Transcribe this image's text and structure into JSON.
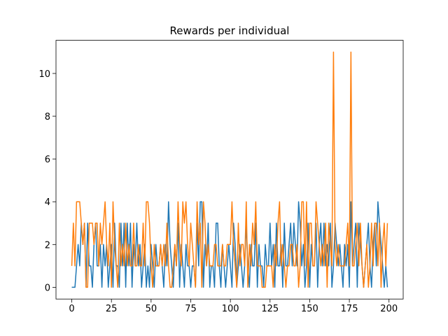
{
  "chart_data": {
    "type": "line",
    "title": "Rewards per individual",
    "x": [
      0,
      1,
      2,
      3,
      4,
      5,
      6,
      7,
      8,
      9,
      10,
      11,
      12,
      13,
      14,
      15,
      16,
      17,
      18,
      19,
      20,
      21,
      22,
      23,
      24,
      25,
      26,
      27,
      28,
      29,
      30,
      31,
      32,
      33,
      34,
      35,
      36,
      37,
      38,
      39,
      40,
      41,
      42,
      43,
      44,
      45,
      46,
      47,
      48,
      49,
      50,
      51,
      52,
      53,
      54,
      55,
      56,
      57,
      58,
      59,
      60,
      61,
      62,
      63,
      64,
      65,
      66,
      67,
      68,
      69,
      70,
      71,
      72,
      73,
      74,
      75,
      76,
      77,
      78,
      79,
      80,
      81,
      82,
      83,
      84,
      85,
      86,
      87,
      88,
      89,
      90,
      91,
      92,
      93,
      94,
      95,
      96,
      97,
      98,
      99,
      100,
      101,
      102,
      103,
      104,
      105,
      106,
      107,
      108,
      109,
      110,
      111,
      112,
      113,
      114,
      115,
      116,
      117,
      118,
      119,
      120,
      121,
      122,
      123,
      124,
      125,
      126,
      127,
      128,
      129,
      130,
      131,
      132,
      133,
      134,
      135,
      136,
      137,
      138,
      139,
      140,
      141,
      142,
      143,
      144,
      145,
      146,
      147,
      148,
      149,
      150,
      151,
      152,
      153,
      154,
      155,
      156,
      157,
      158,
      159,
      160,
      161,
      162,
      163,
      164,
      165,
      166,
      167,
      168,
      169,
      170,
      171,
      172,
      173,
      174,
      175,
      176,
      177,
      178,
      179,
      180,
      181,
      182,
      183,
      184,
      185,
      186,
      187,
      188,
      189,
      190,
      191,
      192,
      193,
      194,
      195,
      196,
      197,
      198,
      199
    ],
    "series": [
      {
        "color": "#1f77b4",
        "values": [
          0,
          0,
          0,
          1,
          2,
          1,
          3,
          2,
          3,
          0,
          3,
          1,
          1,
          0,
          2,
          3,
          1,
          1,
          2,
          0,
          2,
          1,
          2,
          0,
          1,
          2,
          0,
          3,
          1,
          1,
          0,
          3,
          1,
          3,
          0,
          3,
          1,
          3,
          0,
          2,
          1,
          3,
          1,
          2,
          0,
          1,
          2,
          0,
          1,
          0,
          2,
          1,
          0,
          2,
          1,
          1,
          2,
          1,
          0,
          2,
          1,
          4,
          2,
          1,
          0,
          2,
          1,
          3,
          0,
          2,
          1,
          0,
          2,
          1,
          1,
          0,
          1,
          1,
          0,
          3,
          1,
          4,
          4,
          0,
          2,
          1,
          3,
          0,
          1,
          1,
          0,
          3,
          3,
          1,
          0,
          2,
          1,
          0,
          1,
          2,
          1,
          0,
          3,
          2,
          0,
          1,
          2,
          1,
          0,
          1,
          3,
          1,
          0,
          2,
          1,
          1,
          3,
          0,
          2,
          1,
          1,
          0,
          2,
          1,
          1,
          3,
          1,
          2,
          0,
          3,
          1,
          1,
          2,
          0,
          3,
          1,
          1,
          2,
          3,
          1,
          3,
          2,
          1,
          4,
          3,
          1,
          2,
          0,
          1,
          3,
          0,
          2,
          1,
          1,
          3,
          0,
          2,
          3,
          1,
          3,
          1,
          2,
          1,
          3,
          0,
          1,
          3,
          2,
          1,
          2,
          1,
          0,
          2,
          1,
          2,
          0,
          4,
          1,
          2,
          3,
          0,
          3,
          2,
          1,
          0,
          1,
          2,
          3,
          1,
          0,
          2,
          3,
          1,
          4,
          3,
          2,
          1,
          0,
          1,
          0
        ]
      },
      {
        "color": "#ff7f0e",
        "values": [
          1,
          3,
          1,
          4,
          4,
          4,
          3,
          2,
          3,
          0,
          0,
          3,
          3,
          3,
          2,
          3,
          3,
          1,
          3,
          2,
          3,
          4,
          2,
          1,
          3,
          0,
          4,
          2,
          1,
          0,
          3,
          1,
          2,
          1,
          3,
          1,
          2,
          1,
          1,
          3,
          1,
          1,
          2,
          1,
          1,
          3,
          1,
          4,
          4,
          3,
          1,
          0,
          2,
          1,
          1,
          1,
          2,
          1,
          2,
          1,
          3,
          1,
          0,
          0,
          1,
          2,
          1,
          4,
          2,
          1,
          4,
          3,
          4,
          2,
          1,
          3,
          2,
          1,
          0,
          4,
          2,
          3,
          0,
          4,
          3,
          1,
          2,
          1,
          1,
          1,
          2,
          2,
          1,
          1,
          1,
          2,
          1,
          1,
          2,
          2,
          2,
          4,
          2,
          1,
          0,
          3,
          1,
          2,
          2,
          1,
          4,
          0,
          2,
          1,
          3,
          2,
          4,
          1,
          1,
          1,
          0,
          0,
          0,
          1,
          1,
          1,
          1,
          0,
          2,
          1,
          3,
          4,
          1,
          2,
          1,
          0,
          1,
          1,
          2,
          2,
          1,
          1,
          2,
          0,
          1,
          4,
          4,
          1,
          4,
          0,
          3,
          3,
          1,
          1,
          4,
          3,
          2,
          1,
          2,
          1,
          3,
          0,
          3,
          2,
          1,
          11,
          2,
          1,
          2,
          1,
          1,
          1,
          1,
          2,
          3,
          1,
          11,
          1,
          1,
          2,
          3,
          1,
          3,
          1,
          0,
          1,
          2,
          0,
          1,
          3,
          1,
          3,
          3,
          1,
          3,
          0,
          2,
          3,
          1,
          3
        ]
      }
    ],
    "xlim": [
      -9.95,
      208.95
    ],
    "ylim": [
      -0.55,
      11.55
    ],
    "xticks": [
      0,
      25,
      50,
      75,
      100,
      125,
      150,
      175,
      200
    ],
    "yticks": [
      0,
      2,
      4,
      6,
      8,
      10
    ]
  }
}
